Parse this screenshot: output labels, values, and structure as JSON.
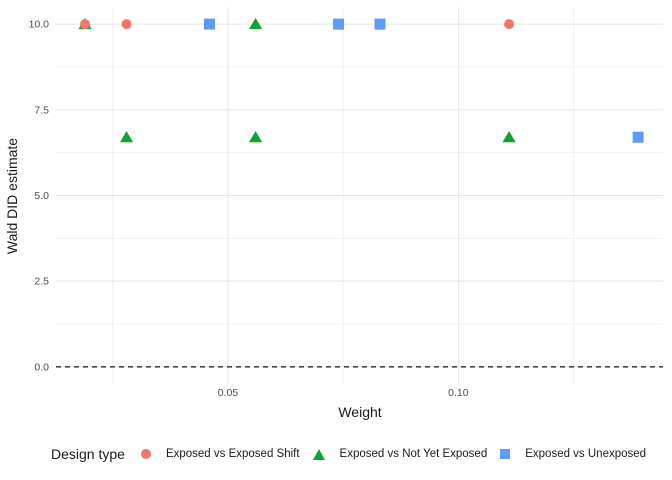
{
  "chart_data": {
    "type": "scatter",
    "title": "",
    "xlabel": "Weight",
    "ylabel": "Wald DID estimate",
    "legend_title": "Design type",
    "legend_position": "bottom",
    "grid": true,
    "xlim": [
      0.0127,
      0.1444
    ],
    "ylim": [
      -0.5,
      10.5
    ],
    "x_ticks": [
      0.05,
      0.1
    ],
    "x_tick_labels": [
      "0.05",
      "0.10"
    ],
    "x_minor_ticks": [
      0.025,
      0.075,
      0.125
    ],
    "y_ticks": [
      0.0,
      2.5,
      5.0,
      7.5,
      10.0
    ],
    "y_tick_labels": [
      "0.0",
      "2.5",
      "5.0",
      "7.5",
      "10.0"
    ],
    "y_minor_ticks": [
      1.25,
      3.75,
      6.25,
      8.75
    ],
    "hline": {
      "y": 0.0,
      "style": "dashed",
      "color": "#111111"
    },
    "series": [
      {
        "name": "Exposed vs Exposed Shift",
        "shape": "circle",
        "color": "#F2746A",
        "points": [
          [
            0.019,
            10.0
          ],
          [
            0.028,
            10.0
          ],
          [
            0.111,
            10.0
          ]
        ]
      },
      {
        "name": "Exposed vs Not Yet Exposed",
        "shape": "triangle",
        "color": "#0FA432",
        "points": [
          [
            0.019,
            10.0
          ],
          [
            0.056,
            10.0
          ],
          [
            0.028,
            6.7
          ],
          [
            0.056,
            6.7
          ],
          [
            0.111,
            6.7
          ]
        ]
      },
      {
        "name": "Exposed vs Unexposed",
        "shape": "square",
        "color": "#5E9BF8",
        "points": [
          [
            0.046,
            10.0
          ],
          [
            0.074,
            10.0
          ],
          [
            0.083,
            10.0
          ],
          [
            0.139,
            6.7
          ]
        ]
      }
    ],
    "draw_order": [
      1,
      2,
      0
    ],
    "colors": {
      "major_grid": "#e5e5e5",
      "minor_grid": "#f0f0f0",
      "tick_label": "#4d4d4d",
      "axis_title": "#1a1a1a"
    }
  }
}
